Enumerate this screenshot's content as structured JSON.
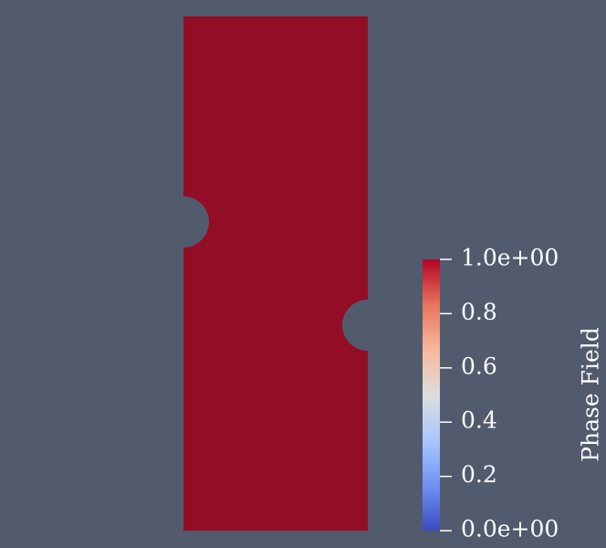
{
  "colors": {
    "background": "#525a6e",
    "specimen_fill": "#930d26",
    "colormap": [
      "#3b4cc0",
      "#6f92f3",
      "#aac7fd",
      "#dddddd",
      "#f7b89c",
      "#e7745b",
      "#b40426"
    ],
    "tick_color": "#ffffff"
  },
  "specimen": {
    "field_value": 1.0
  },
  "colorbar": {
    "title": "Phase Field",
    "min": 0.0,
    "max": 1.0,
    "ticks": [
      {
        "value": 1.0,
        "label": "1.0e+00"
      },
      {
        "value": 0.8,
        "label": "0.8"
      },
      {
        "value": 0.6,
        "label": "0.6"
      },
      {
        "value": 0.4,
        "label": "0.4"
      },
      {
        "value": 0.2,
        "label": "0.2"
      },
      {
        "value": 0.0,
        "label": "0.0e+00"
      }
    ]
  }
}
